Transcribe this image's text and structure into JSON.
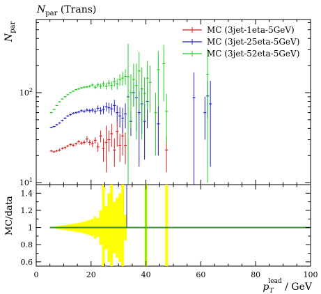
{
  "chart_data": {
    "type": "scatter",
    "title": "N_par (Trans)",
    "title_parts": {
      "main": "N",
      "sub": "par",
      "rest": " (Trans)"
    },
    "ylabel": {
      "main": "N",
      "sub": "par"
    },
    "xlabel": {
      "main": "p",
      "sub": "T",
      "sup": "lead",
      "rest": " / GeV"
    },
    "xlim": [
      0,
      100
    ],
    "ylim_log": [
      9.5,
      650
    ],
    "y_scale": "log",
    "legend_placement": "top-right",
    "x_ticks": [
      0,
      20,
      40,
      60,
      80,
      100
    ],
    "y_ticks": [
      {
        "value": 10,
        "base": "10",
        "exp": "1"
      },
      {
        "value": 100,
        "base": "10",
        "exp": "2"
      }
    ],
    "series": [
      {
        "name": "MC (3jet-1eta-5GeV)",
        "color": "#d42020",
        "points": [
          {
            "x": 5.5,
            "y": 22.5,
            "err": 0.6
          },
          {
            "x": 6.5,
            "y": 22,
            "err": 0.6
          },
          {
            "x": 7.5,
            "y": 22.5,
            "err": 0.6
          },
          {
            "x": 8.5,
            "y": 23,
            "err": 0.7
          },
          {
            "x": 9.5,
            "y": 24,
            "err": 0.7
          },
          {
            "x": 10.5,
            "y": 24.5,
            "err": 0.8
          },
          {
            "x": 11.5,
            "y": 25.5,
            "err": 0.8
          },
          {
            "x": 12.5,
            "y": 26.5,
            "err": 0.9
          },
          {
            "x": 13.5,
            "y": 26,
            "err": 1.0
          },
          {
            "x": 14.5,
            "y": 27,
            "err": 1.1
          },
          {
            "x": 15.5,
            "y": 28.5,
            "err": 1.2
          },
          {
            "x": 16.5,
            "y": 27.5,
            "err": 1.3
          },
          {
            "x": 17.5,
            "y": 28,
            "err": 1.5
          },
          {
            "x": 18.5,
            "y": 30.5,
            "err": 2.5
          },
          {
            "x": 19.5,
            "y": 28,
            "err": 2.0
          },
          {
            "x": 20.5,
            "y": 27,
            "err": 2.2
          },
          {
            "x": 21.5,
            "y": 29.5,
            "err": 2.5
          },
          {
            "x": 22.5,
            "y": 25,
            "err": 3.0
          },
          {
            "x": 23.5,
            "y": 33,
            "err": 5.0
          },
          {
            "x": 24.5,
            "y": 24,
            "err": 7.0
          },
          {
            "x": 25.5,
            "y": 28,
            "err": 15
          },
          {
            "x": 26.5,
            "y": 30,
            "err": 8
          },
          {
            "x": 27.5,
            "y": 35,
            "err": 10
          },
          {
            "x": 28.5,
            "y": 23,
            "err": 8
          },
          {
            "x": 29.5,
            "y": 37,
            "err": 12
          },
          {
            "x": 30.5,
            "y": 26,
            "err": 9
          },
          {
            "x": 31.5,
            "y": 33,
            "err": 13
          },
          {
            "x": 32.5,
            "y": 26,
            "err": 10
          },
          {
            "x": 47.5,
            "y": 23,
            "err": 10
          }
        ]
      },
      {
        "name": "MC (3jet-25eta-5GeV)",
        "color": "#2020cc",
        "points": [
          {
            "x": 5.5,
            "y": 41,
            "err": 0.8
          },
          {
            "x": 6.5,
            "y": 42,
            "err": 0.8
          },
          {
            "x": 7.5,
            "y": 44,
            "err": 0.9
          },
          {
            "x": 8.5,
            "y": 46,
            "err": 1.0
          },
          {
            "x": 9.5,
            "y": 49,
            "err": 1.1
          },
          {
            "x": 10.5,
            "y": 52,
            "err": 1.2
          },
          {
            "x": 11.5,
            "y": 55,
            "err": 1.3
          },
          {
            "x": 12.5,
            "y": 57,
            "err": 1.4
          },
          {
            "x": 13.5,
            "y": 59,
            "err": 1.5
          },
          {
            "x": 14.5,
            "y": 60,
            "err": 1.7
          },
          {
            "x": 15.5,
            "y": 61,
            "err": 1.9
          },
          {
            "x": 16.5,
            "y": 63,
            "err": 2.1
          },
          {
            "x": 17.5,
            "y": 62,
            "err": 2.4
          },
          {
            "x": 18.5,
            "y": 64,
            "err": 2.8
          },
          {
            "x": 19.5,
            "y": 63,
            "err": 3.2
          },
          {
            "x": 20.5,
            "y": 64,
            "err": 3.6
          },
          {
            "x": 21.5,
            "y": 62,
            "err": 4
          },
          {
            "x": 22.5,
            "y": 67,
            "err": 5
          },
          {
            "x": 23.5,
            "y": 63,
            "err": 6
          },
          {
            "x": 24.5,
            "y": 65,
            "err": 7
          },
          {
            "x": 25.5,
            "y": 70,
            "err": 8
          },
          {
            "x": 26.5,
            "y": 68,
            "err": 9
          },
          {
            "x": 27.5,
            "y": 66,
            "err": 10
          },
          {
            "x": 28.5,
            "y": 72,
            "err": 11
          },
          {
            "x": 29.5,
            "y": 60,
            "err": 12
          },
          {
            "x": 30.5,
            "y": 55,
            "err": 14
          },
          {
            "x": 31.5,
            "y": 52,
            "err": 16
          },
          {
            "x": 32.5,
            "y": 58,
            "err": 18
          },
          {
            "x": 33.5,
            "y": 90,
            "err": 30
          },
          {
            "x": 34.5,
            "y": 48,
            "err": 15
          },
          {
            "x": 35.5,
            "y": 100,
            "err": 30
          },
          {
            "x": 36.5,
            "y": 88,
            "err": 50
          },
          {
            "x": 37.5,
            "y": 60,
            "err": 45
          },
          {
            "x": 38.5,
            "y": 75,
            "err": 40
          },
          {
            "x": 39.5,
            "y": 48,
            "err": 30
          },
          {
            "x": 40.5,
            "y": 80,
            "err": 40
          },
          {
            "x": 44.5,
            "y": 45,
            "err": 25
          },
          {
            "x": 57.5,
            "y": 88,
            "err": 80
          },
          {
            "x": 61.5,
            "y": 60,
            "err": 30
          },
          {
            "x": 62.5,
            "y": 92,
            "err": 40
          },
          {
            "x": 63.5,
            "y": 75,
            "err": 60
          }
        ]
      },
      {
        "name": "MC (3jet-52eta-5GeV)",
        "color": "#22cc22",
        "points": [
          {
            "x": 5.5,
            "y": 60,
            "err": 1.0
          },
          {
            "x": 6.5,
            "y": 65,
            "err": 1.0
          },
          {
            "x": 7.5,
            "y": 72,
            "err": 1.1
          },
          {
            "x": 8.5,
            "y": 79,
            "err": 1.2
          },
          {
            "x": 9.5,
            "y": 85,
            "err": 1.3
          },
          {
            "x": 10.5,
            "y": 90,
            "err": 1.4
          },
          {
            "x": 11.5,
            "y": 95,
            "err": 1.6
          },
          {
            "x": 12.5,
            "y": 100,
            "err": 1.8
          },
          {
            "x": 13.5,
            "y": 104,
            "err": 2.0
          },
          {
            "x": 14.5,
            "y": 108,
            "err": 2.3
          },
          {
            "x": 15.5,
            "y": 110,
            "err": 2.6
          },
          {
            "x": 16.5,
            "y": 113,
            "err": 3.0
          },
          {
            "x": 17.5,
            "y": 115,
            "err": 3.4
          },
          {
            "x": 18.5,
            "y": 116,
            "err": 3.8
          },
          {
            "x": 19.5,
            "y": 118,
            "err": 4.3
          },
          {
            "x": 20.5,
            "y": 122,
            "err": 5
          },
          {
            "x": 21.5,
            "y": 115,
            "err": 6
          },
          {
            "x": 22.5,
            "y": 122,
            "err": 7
          },
          {
            "x": 23.5,
            "y": 118,
            "err": 8
          },
          {
            "x": 24.5,
            "y": 125,
            "err": 9
          },
          {
            "x": 25.5,
            "y": 118,
            "err": 10
          },
          {
            "x": 26.5,
            "y": 128,
            "err": 11
          },
          {
            "x": 27.5,
            "y": 120,
            "err": 13
          },
          {
            "x": 28.5,
            "y": 132,
            "err": 15
          },
          {
            "x": 29.5,
            "y": 125,
            "err": 17
          },
          {
            "x": 30.5,
            "y": 140,
            "err": 20
          },
          {
            "x": 31.5,
            "y": 145,
            "err": 25
          },
          {
            "x": 32.5,
            "y": 152,
            "err": 30
          },
          {
            "x": 33.5,
            "y": 150,
            "err": 200
          },
          {
            "x": 34.5,
            "y": 100,
            "err": 60
          },
          {
            "x": 35.5,
            "y": 140,
            "err": 70
          },
          {
            "x": 36.5,
            "y": 120,
            "err": 90
          },
          {
            "x": 37.5,
            "y": 175,
            "err": 110
          },
          {
            "x": 38.5,
            "y": 110,
            "err": 80
          },
          {
            "x": 39.5,
            "y": 98,
            "err": 50
          },
          {
            "x": 40.5,
            "y": 145,
            "err": 80
          },
          {
            "x": 41.5,
            "y": 130,
            "err": 70
          },
          {
            "x": 43.5,
            "y": 60,
            "err": 40
          },
          {
            "x": 44.5,
            "y": 180,
            "err": 110
          },
          {
            "x": 46.5,
            "y": 210,
            "err": 130
          },
          {
            "x": 47.5,
            "y": 62,
            "err": 35
          },
          {
            "x": 62.5,
            "y": 160,
            "err": 150
          }
        ]
      }
    ],
    "ratio": {
      "ylabel": "MC/data",
      "ylim": [
        0.55,
        1.5
      ],
      "y_ticks": [
        0.6,
        0.8,
        1,
        1.2,
        1.4
      ],
      "y_tick_labels": [
        "0.6",
        "0.8",
        "1",
        "1.2",
        "1.4"
      ],
      "reference": 1,
      "band_color": "#ffff00",
      "line_color": "#2a9a2a",
      "line_end_x": 100,
      "band": [
        {
          "x0": 5,
          "x1": 6,
          "lo": 0.992,
          "hi": 1.008
        },
        {
          "x0": 6,
          "x1": 7,
          "lo": 0.99,
          "hi": 1.01
        },
        {
          "x0": 7,
          "x1": 8,
          "lo": 0.985,
          "hi": 1.015
        },
        {
          "x0": 8,
          "x1": 9,
          "lo": 0.98,
          "hi": 1.02
        },
        {
          "x0": 9,
          "x1": 10,
          "lo": 0.975,
          "hi": 1.025
        },
        {
          "x0": 10,
          "x1": 11,
          "lo": 0.97,
          "hi": 1.03
        },
        {
          "x0": 11,
          "x1": 12,
          "lo": 0.965,
          "hi": 1.035
        },
        {
          "x0": 12,
          "x1": 13,
          "lo": 0.96,
          "hi": 1.04
        },
        {
          "x0": 13,
          "x1": 14,
          "lo": 0.955,
          "hi": 1.045
        },
        {
          "x0": 14,
          "x1": 15,
          "lo": 0.95,
          "hi": 1.05
        },
        {
          "x0": 15,
          "x1": 16,
          "lo": 0.945,
          "hi": 1.055
        },
        {
          "x0": 16,
          "x1": 17,
          "lo": 0.94,
          "hi": 1.06
        },
        {
          "x0": 17,
          "x1": 18,
          "lo": 0.93,
          "hi": 1.07
        },
        {
          "x0": 18,
          "x1": 19,
          "lo": 0.92,
          "hi": 1.08
        },
        {
          "x0": 19,
          "x1": 20,
          "lo": 0.91,
          "hi": 1.09
        },
        {
          "x0": 20,
          "x1": 21,
          "lo": 0.9,
          "hi": 1.1
        },
        {
          "x0": 21,
          "x1": 22,
          "lo": 0.87,
          "hi": 1.13
        },
        {
          "x0": 22,
          "x1": 23,
          "lo": 0.89,
          "hi": 1.11
        },
        {
          "x0": 23,
          "x1": 24,
          "lo": 0.8,
          "hi": 1.2
        },
        {
          "x0": 24,
          "x1": 25,
          "lo": 0.55,
          "hi": 1.5
        },
        {
          "x0": 25,
          "x1": 26,
          "lo": 0.75,
          "hi": 1.25
        },
        {
          "x0": 26,
          "x1": 27,
          "lo": 0.6,
          "hi": 1.4
        },
        {
          "x0": 27,
          "x1": 28,
          "lo": 0.55,
          "hi": 1.5
        },
        {
          "x0": 28,
          "x1": 29,
          "lo": 0.7,
          "hi": 1.3
        },
        {
          "x0": 29,
          "x1": 30,
          "lo": 0.65,
          "hi": 1.35
        },
        {
          "x0": 30,
          "x1": 31,
          "lo": 0.6,
          "hi": 1.4
        },
        {
          "x0": 31,
          "x1": 32,
          "lo": 0.55,
          "hi": 1.5
        },
        {
          "x0": 32,
          "x1": 33,
          "lo": 0.85,
          "hi": 1.15
        },
        {
          "x0": 39.5,
          "x1": 40.5,
          "lo": 0.55,
          "hi": 1.5
        },
        {
          "x0": 47,
          "x1": 48,
          "lo": 0.55,
          "hi": 1.5
        }
      ]
    }
  }
}
